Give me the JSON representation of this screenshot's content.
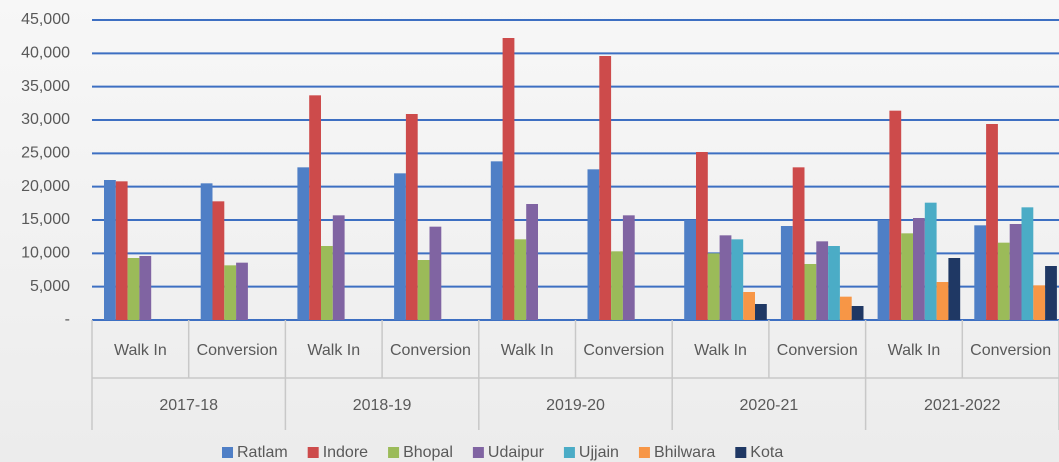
{
  "chart_data": {
    "type": "bar",
    "categories": [
      "Walk In",
      "Conversion",
      "Walk In",
      "Conversion",
      "Walk In",
      "Conversion",
      "Walk In",
      "Conversion",
      "Walk In",
      "Conversion"
    ],
    "groups": [
      "2017-18",
      "2018-19",
      "2019-20",
      "2020-21",
      "2021-2022"
    ],
    "series": [
      {
        "name": "Ratlam",
        "color": "#4f7fc6",
        "values": [
          21000,
          20500,
          22900,
          22000,
          23800,
          22600,
          15000,
          14100,
          15000,
          14200
        ]
      },
      {
        "name": "Indore",
        "color": "#cd4b4b",
        "values": [
          20800,
          17800,
          33700,
          30900,
          42300,
          39600,
          25200,
          22900,
          31400,
          29400
        ]
      },
      {
        "name": "Bhopal",
        "color": "#9bbb59",
        "values": [
          9300,
          8200,
          11100,
          9000,
          12100,
          10300,
          10000,
          8400,
          13000,
          11600
        ]
      },
      {
        "name": "Udaipur",
        "color": "#8064a2",
        "values": [
          9600,
          8600,
          15700,
          14000,
          17400,
          15700,
          12700,
          11800,
          15300,
          14400
        ]
      },
      {
        "name": "Ujjain",
        "color": "#4bacc6",
        "values": [
          null,
          null,
          null,
          null,
          null,
          null,
          12100,
          11100,
          17600,
          16900
        ]
      },
      {
        "name": "Bhilwara",
        "color": "#f79646",
        "values": [
          null,
          null,
          null,
          null,
          null,
          null,
          4200,
          3500,
          5700,
          5200
        ]
      },
      {
        "name": "Kota",
        "color": "#1f3864",
        "values": [
          null,
          null,
          null,
          null,
          null,
          null,
          2400,
          2100,
          9300,
          8100
        ]
      }
    ],
    "ylim": [
      0,
      45000
    ],
    "yticks": [
      {
        "value": 0,
        "label": "-"
      },
      {
        "value": 5000,
        "label": "5,000"
      },
      {
        "value": 10000,
        "label": "10,000"
      },
      {
        "value": 15000,
        "label": "15,000"
      },
      {
        "value": 20000,
        "label": "20,000"
      },
      {
        "value": 25000,
        "label": "25,000"
      },
      {
        "value": 30000,
        "label": "30,000"
      },
      {
        "value": 35000,
        "label": "35,000"
      },
      {
        "value": 40000,
        "label": "40,000"
      },
      {
        "value": 45000,
        "label": "45,000"
      }
    ],
    "grid": true,
    "legend": "bottom"
  }
}
